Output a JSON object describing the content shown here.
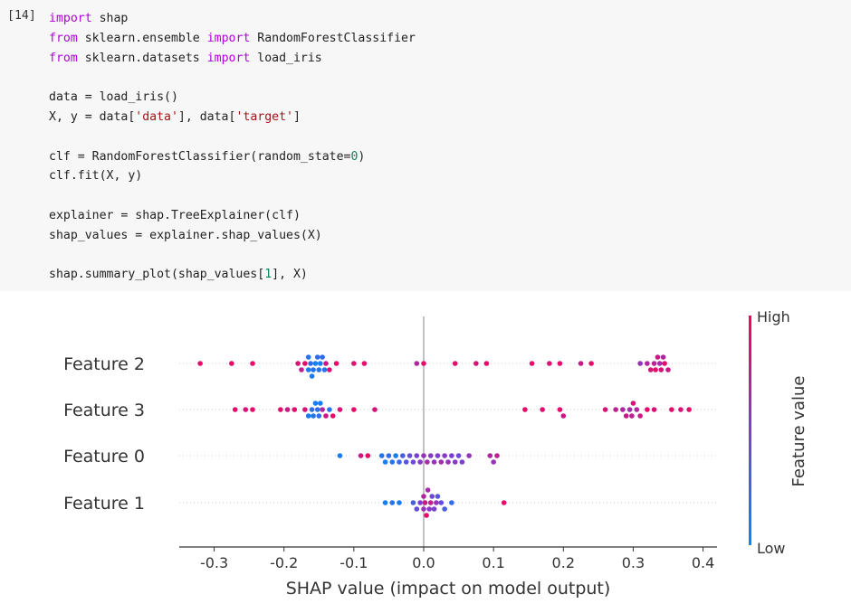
{
  "cell": {
    "prompt": "[14]",
    "lines": [
      [
        {
          "t": "import",
          "c": "kw"
        },
        {
          "t": " shap"
        }
      ],
      [
        {
          "t": "from",
          "c": "kw"
        },
        {
          "t": " sklearn.ensemble "
        },
        {
          "t": "import",
          "c": "kw"
        },
        {
          "t": " RandomForestClassifier"
        }
      ],
      [
        {
          "t": "from",
          "c": "kw"
        },
        {
          "t": " sklearn.datasets "
        },
        {
          "t": "import",
          "c": "kw"
        },
        {
          "t": " load_iris"
        }
      ],
      [],
      [
        {
          "t": "data = load_iris()"
        }
      ],
      [
        {
          "t": "X, y = data["
        },
        {
          "t": "'data'",
          "c": "str"
        },
        {
          "t": "], data["
        },
        {
          "t": "'target'",
          "c": "str"
        },
        {
          "t": "]"
        }
      ],
      [],
      [
        {
          "t": "clf = RandomForestClassifier(random_state="
        },
        {
          "t": "0",
          "c": "num"
        },
        {
          "t": ")"
        }
      ],
      [
        {
          "t": "clf.fit(X, y)"
        }
      ],
      [],
      [
        {
          "t": "explainer = shap.TreeExplainer(clf)"
        }
      ],
      [
        {
          "t": "shap_values = explainer.shap_values(X)"
        }
      ],
      [],
      [
        {
          "t": "shap.summary_plot(shap_values["
        },
        {
          "t": "1",
          "c": "num"
        },
        {
          "t": "], X)"
        }
      ]
    ]
  },
  "chart_data": {
    "type": "scatter",
    "title": "",
    "xlabel": "SHAP value (impact on model output)",
    "ylabel": "",
    "xlim": [
      -0.35,
      0.42
    ],
    "xticks": [
      "-0.3",
      "-0.2",
      "-0.1",
      "0.0",
      "0.1",
      "0.2",
      "0.3",
      "0.4"
    ],
    "tick_values": [
      -0.3,
      -0.2,
      -0.1,
      0.0,
      0.1,
      0.2,
      0.3,
      0.4
    ],
    "grid": false,
    "colorbar": {
      "label": "Feature value",
      "high": "High",
      "low": "Low",
      "high_color": "#ff0052",
      "low_color": "#008bfb"
    },
    "features": [
      {
        "name": "Feature 2",
        "points": [
          [
            -0.32,
            0.9
          ],
          [
            -0.275,
            0.9
          ],
          [
            -0.245,
            0.9
          ],
          [
            -0.18,
            0.85
          ],
          [
            -0.175,
            0.75
          ],
          [
            -0.17,
            0.9
          ],
          [
            -0.165,
            0.1
          ],
          [
            -0.165,
            0.15
          ],
          [
            -0.162,
            0.2
          ],
          [
            -0.16,
            0.1
          ],
          [
            -0.158,
            0.15
          ],
          [
            -0.155,
            0.1
          ],
          [
            -0.152,
            0.2
          ],
          [
            -0.15,
            0.15
          ],
          [
            -0.148,
            0.1
          ],
          [
            -0.145,
            0.2
          ],
          [
            -0.142,
            0.15
          ],
          [
            -0.14,
            0.8
          ],
          [
            -0.135,
            0.85
          ],
          [
            -0.125,
            0.9
          ],
          [
            -0.1,
            0.85
          ],
          [
            -0.085,
            0.9
          ],
          [
            -0.01,
            0.7
          ],
          [
            0.0,
            0.9
          ],
          [
            0.045,
            0.9
          ],
          [
            0.075,
            0.85
          ],
          [
            0.09,
            0.9
          ],
          [
            0.155,
            0.9
          ],
          [
            0.18,
            0.85
          ],
          [
            0.195,
            0.9
          ],
          [
            0.225,
            0.8
          ],
          [
            0.24,
            0.9
          ],
          [
            0.31,
            0.6
          ],
          [
            0.32,
            0.7
          ],
          [
            0.325,
            0.85
          ],
          [
            0.33,
            0.75
          ],
          [
            0.332,
            0.9
          ],
          [
            0.335,
            0.8
          ],
          [
            0.338,
            0.65
          ],
          [
            0.34,
            0.85
          ],
          [
            0.343,
            0.7
          ],
          [
            0.345,
            0.9
          ],
          [
            0.35,
            0.8
          ]
        ]
      },
      {
        "name": "Feature 3",
        "points": [
          [
            -0.27,
            0.9
          ],
          [
            -0.255,
            0.85
          ],
          [
            -0.245,
            0.9
          ],
          [
            -0.205,
            0.9
          ],
          [
            -0.195,
            0.8
          ],
          [
            -0.185,
            0.9
          ],
          [
            -0.17,
            0.85
          ],
          [
            -0.165,
            0.1
          ],
          [
            -0.16,
            0.2
          ],
          [
            -0.158,
            0.15
          ],
          [
            -0.155,
            0.1
          ],
          [
            -0.152,
            0.2
          ],
          [
            -0.15,
            0.15
          ],
          [
            -0.148,
            0.1
          ],
          [
            -0.145,
            0.7
          ],
          [
            -0.14,
            0.8
          ],
          [
            -0.135,
            0.15
          ],
          [
            -0.13,
            0.9
          ],
          [
            -0.12,
            0.85
          ],
          [
            -0.1,
            0.9
          ],
          [
            -0.07,
            0.85
          ],
          [
            0.145,
            0.9
          ],
          [
            0.17,
            0.85
          ],
          [
            0.195,
            0.9
          ],
          [
            0.2,
            0.8
          ],
          [
            0.26,
            0.85
          ],
          [
            0.275,
            0.75
          ],
          [
            0.285,
            0.7
          ],
          [
            0.29,
            0.8
          ],
          [
            0.295,
            0.65
          ],
          [
            0.298,
            0.75
          ],
          [
            0.3,
            0.85
          ],
          [
            0.305,
            0.7
          ],
          [
            0.31,
            0.8
          ],
          [
            0.32,
            0.9
          ],
          [
            0.33,
            0.85
          ],
          [
            0.355,
            0.9
          ],
          [
            0.368,
            0.85
          ],
          [
            0.38,
            0.9
          ]
        ]
      },
      {
        "name": "Feature 0",
        "points": [
          [
            -0.12,
            0.1
          ],
          [
            -0.09,
            0.8
          ],
          [
            -0.08,
            0.9
          ],
          [
            -0.06,
            0.15
          ],
          [
            -0.055,
            0.1
          ],
          [
            -0.05,
            0.2
          ],
          [
            -0.045,
            0.15
          ],
          [
            -0.04,
            0.1
          ],
          [
            -0.035,
            0.25
          ],
          [
            -0.03,
            0.3
          ],
          [
            -0.025,
            0.35
          ],
          [
            -0.02,
            0.4
          ],
          [
            -0.015,
            0.45
          ],
          [
            -0.01,
            0.5
          ],
          [
            -0.005,
            0.55
          ],
          [
            0.0,
            0.6
          ],
          [
            0.005,
            0.65
          ],
          [
            0.01,
            0.55
          ],
          [
            0.015,
            0.6
          ],
          [
            0.02,
            0.5
          ],
          [
            0.025,
            0.65
          ],
          [
            0.03,
            0.55
          ],
          [
            0.035,
            0.6
          ],
          [
            0.04,
            0.5
          ],
          [
            0.045,
            0.55
          ],
          [
            0.05,
            0.45
          ],
          [
            0.055,
            0.5
          ],
          [
            0.065,
            0.6
          ],
          [
            0.095,
            0.7
          ],
          [
            0.1,
            0.6
          ],
          [
            0.105,
            0.75
          ]
        ]
      },
      {
        "name": "Feature 1",
        "points": [
          [
            -0.055,
            0.1
          ],
          [
            -0.045,
            0.15
          ],
          [
            -0.035,
            0.1
          ],
          [
            -0.015,
            0.3
          ],
          [
            -0.01,
            0.4
          ],
          [
            -0.005,
            0.5
          ],
          [
            0.0,
            0.6
          ],
          [
            0.0,
            0.7
          ],
          [
            0.002,
            0.8
          ],
          [
            0.004,
            0.9
          ],
          [
            0.006,
            0.65
          ],
          [
            0.008,
            0.55
          ],
          [
            0.01,
            0.75
          ],
          [
            0.012,
            0.45
          ],
          [
            0.015,
            0.5
          ],
          [
            0.018,
            0.6
          ],
          [
            0.02,
            0.35
          ],
          [
            0.025,
            0.4
          ],
          [
            0.03,
            0.3
          ],
          [
            0.04,
            0.2
          ],
          [
            0.115,
            0.9
          ]
        ]
      }
    ]
  }
}
